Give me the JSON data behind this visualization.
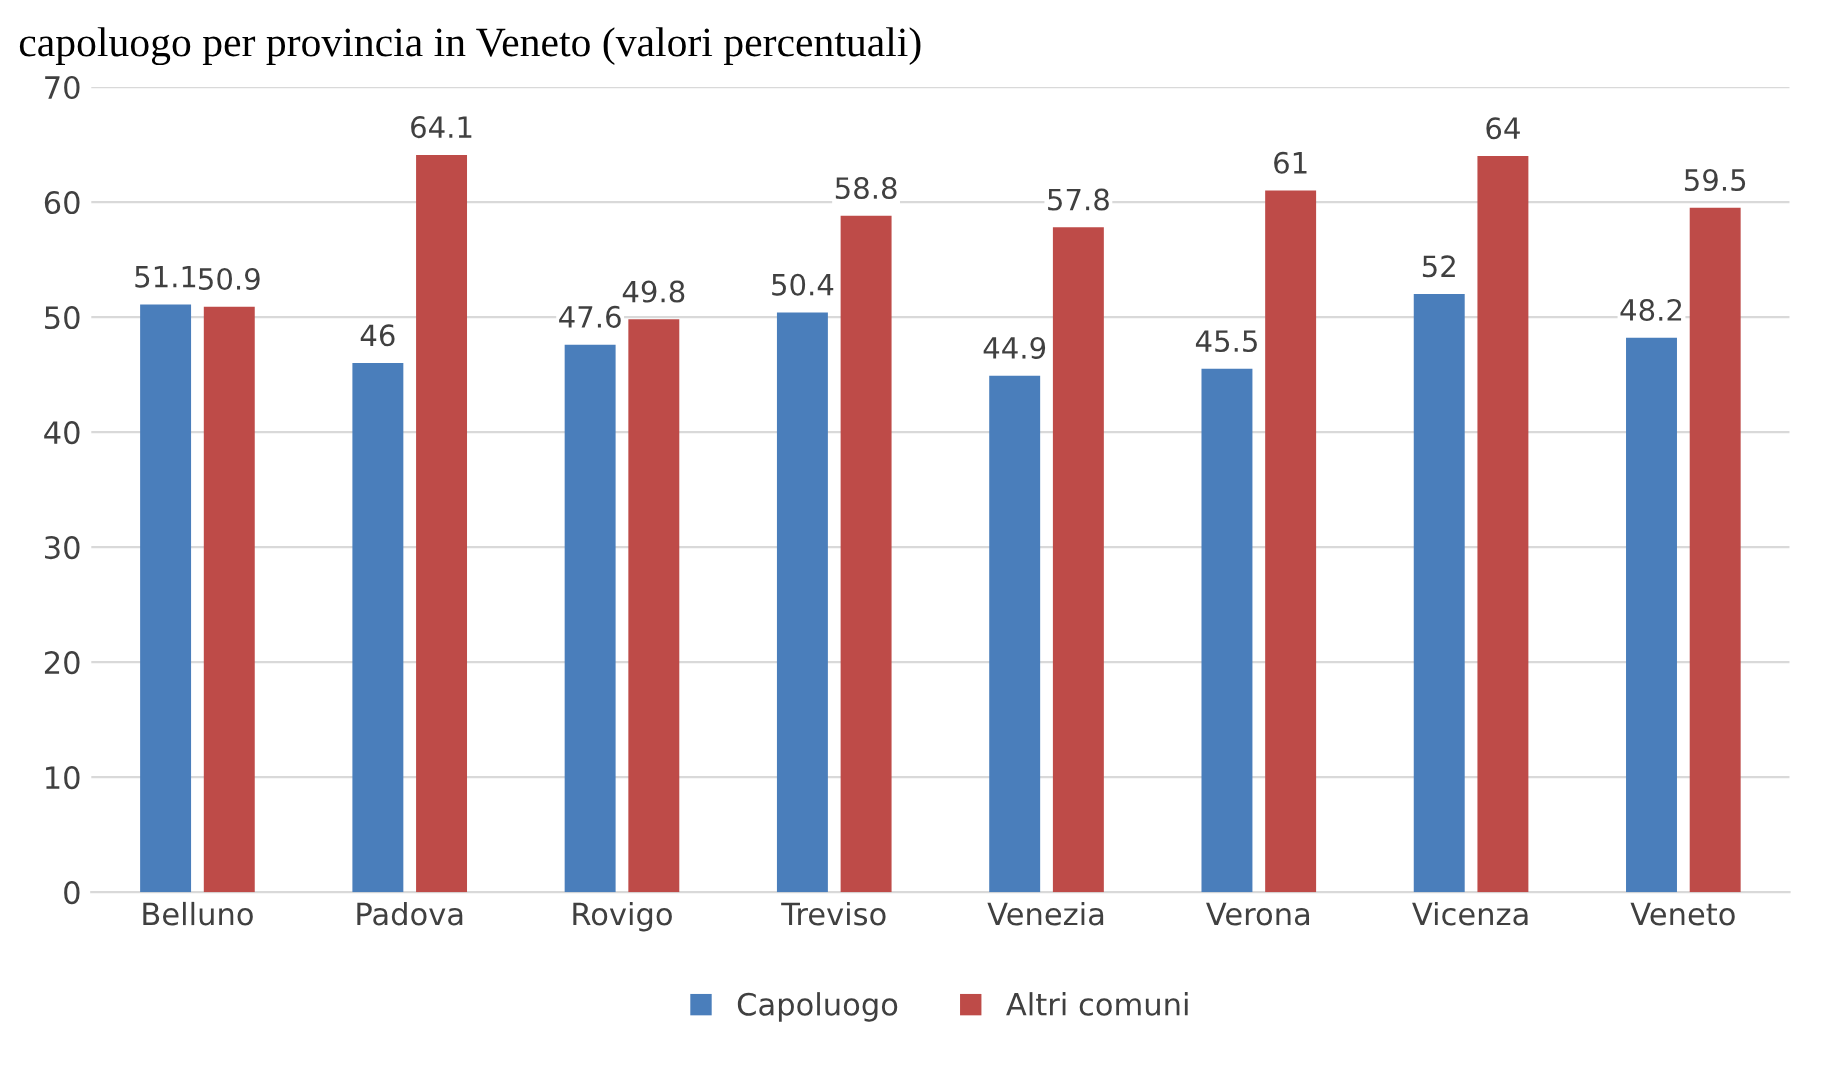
{
  "chart_data": {
    "type": "bar",
    "title": "capoluogo per provincia in Veneto (valori percentuali)",
    "categories": [
      "Belluno",
      "Padova",
      "Rovigo",
      "Treviso",
      "Venezia",
      "Verona",
      "Vicenza",
      "Veneto"
    ],
    "series": [
      {
        "name": "Capoluogo",
        "color": "#4a7ebb",
        "values": [
          51.1,
          46,
          47.6,
          50.4,
          44.9,
          45.5,
          52,
          48.2
        ]
      },
      {
        "name": "Altri comuni",
        "color": "#be4b48",
        "values": [
          50.9,
          64.1,
          49.8,
          58.8,
          57.8,
          61,
          64,
          59.5
        ]
      }
    ],
    "ylim": [
      0,
      70
    ],
    "yticks": [
      0,
      10,
      20,
      30,
      40,
      50,
      60,
      70
    ],
    "grid": "y",
    "legend": "bottom",
    "data_labels": true
  }
}
